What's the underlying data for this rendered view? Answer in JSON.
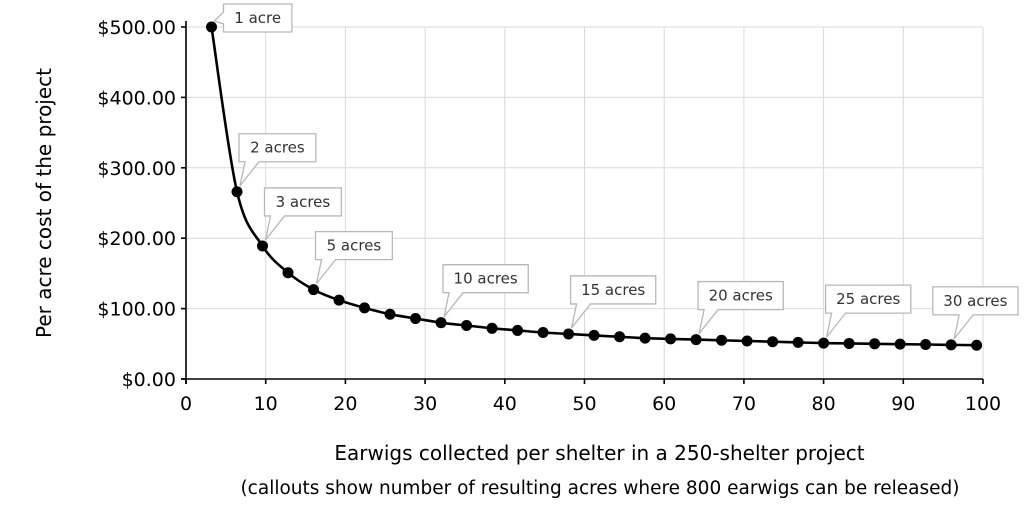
{
  "chart_data": {
    "type": "scatter",
    "title": "",
    "xlabel": "Earwigs collected per shelter in a 250-shelter project",
    "xlabel_sub": "(callouts show number of resulting acres where 800 earwigs can be released)",
    "ylabel": "Per acre cost of the project",
    "xlim": [
      0,
      100
    ],
    "ylim": [
      0,
      500
    ],
    "grid": true,
    "xticks": [
      0,
      10,
      20,
      30,
      40,
      50,
      60,
      70,
      80,
      90,
      100
    ],
    "xtick_labels": [
      "0",
      "10",
      "20",
      "30",
      "40",
      "50",
      "60",
      "70",
      "80",
      "90",
      "100"
    ],
    "yticks": [
      0,
      100,
      200,
      300,
      400,
      500
    ],
    "ytick_labels": [
      "$0.00",
      "$100.00",
      "$200.00",
      "$300.00",
      "$400.00",
      "$500.00"
    ],
    "series": [
      {
        "x": [
          3.2,
          6.4,
          9.6,
          12.8,
          16.0,
          19.2,
          22.4,
          25.6,
          28.8,
          32.0,
          35.2,
          38.4,
          41.6,
          44.8,
          48.0,
          51.2,
          54.4,
          57.6,
          60.8,
          64.0,
          67.2,
          70.4,
          73.6,
          76.8,
          80.0,
          83.2,
          86.4,
          89.6,
          92.8,
          96.0,
          99.2
        ],
        "y": [
          500.0,
          266.0,
          189.0,
          151.0,
          127.0,
          112.0,
          101.0,
          92.0,
          86.0,
          80.0,
          76.0,
          72.0,
          69.0,
          66.0,
          64.0,
          62.0,
          60.0,
          58.0,
          57.0,
          56.0,
          55.0,
          54.0,
          53.0,
          52.0,
          51.0,
          50.5,
          50.0,
          49.5,
          49.0,
          48.5,
          48.0
        ]
      }
    ],
    "annotations": [
      {
        "text": "1 acre",
        "x": 3.2,
        "y": 500
      },
      {
        "text": "2 acres",
        "x": 6.4,
        "y": 266
      },
      {
        "text": "3 acres",
        "x": 9.6,
        "y": 189
      },
      {
        "text": "5 acres",
        "x": 16.0,
        "y": 127
      },
      {
        "text": "10 acres",
        "x": 32.0,
        "y": 80
      },
      {
        "text": "15 acres",
        "x": 48.0,
        "y": 64
      },
      {
        "text": "20 acres",
        "x": 64.0,
        "y": 56
      },
      {
        "text": "25 acres",
        "x": 80.0,
        "y": 51
      },
      {
        "text": "30 acres",
        "x": 96.0,
        "y": 48.5
      }
    ]
  }
}
